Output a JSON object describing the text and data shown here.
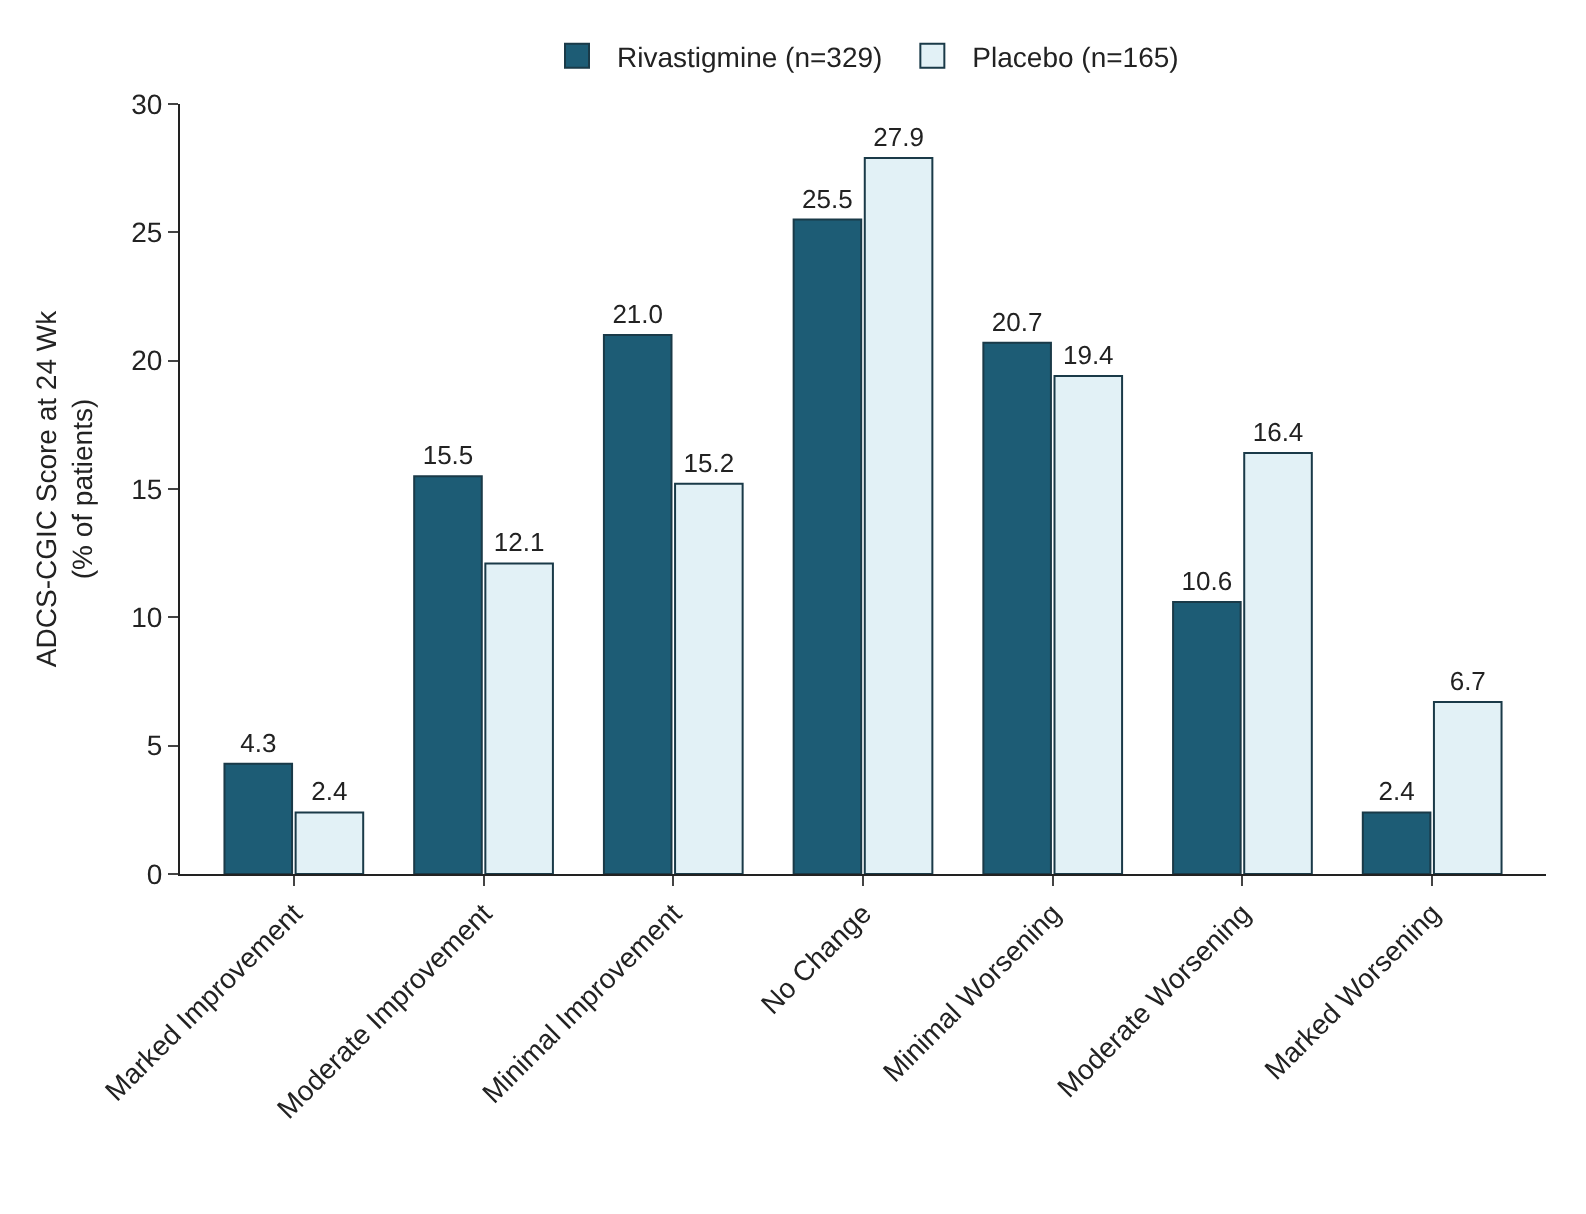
{
  "chart_data": {
    "type": "bar",
    "ylabel": "ADCS-CGIC Score at 24 Wk\n(% of patients)",
    "categories": [
      "Marked Improvement",
      "Moderate Improvement",
      "Minimal Improvement",
      "No Change",
      "Minimal Worsening",
      "Moderate Worsening",
      "Marked Worsening"
    ],
    "series": [
      {
        "name": "Rivastigmine (n=329)",
        "color": "#1d5c75",
        "values": [
          4.3,
          15.5,
          21.0,
          25.5,
          20.7,
          10.6,
          2.4
        ],
        "value_labels": [
          "4.3",
          "15.5",
          "21.0",
          "25.5",
          "20.7",
          "10.6",
          "2.4"
        ]
      },
      {
        "name": "Placebo (n=165)",
        "color": "#e2f1f6",
        "values": [
          2.4,
          12.1,
          15.2,
          27.9,
          19.4,
          16.4,
          6.7
        ],
        "value_labels": [
          "2.4",
          "12.1",
          "15.2",
          "27.9",
          "19.4",
          "16.4",
          "6.7"
        ]
      }
    ],
    "ylim": [
      0,
      30
    ],
    "yticks": [
      0,
      5,
      10,
      15,
      20,
      25,
      30
    ],
    "legend": "top"
  }
}
